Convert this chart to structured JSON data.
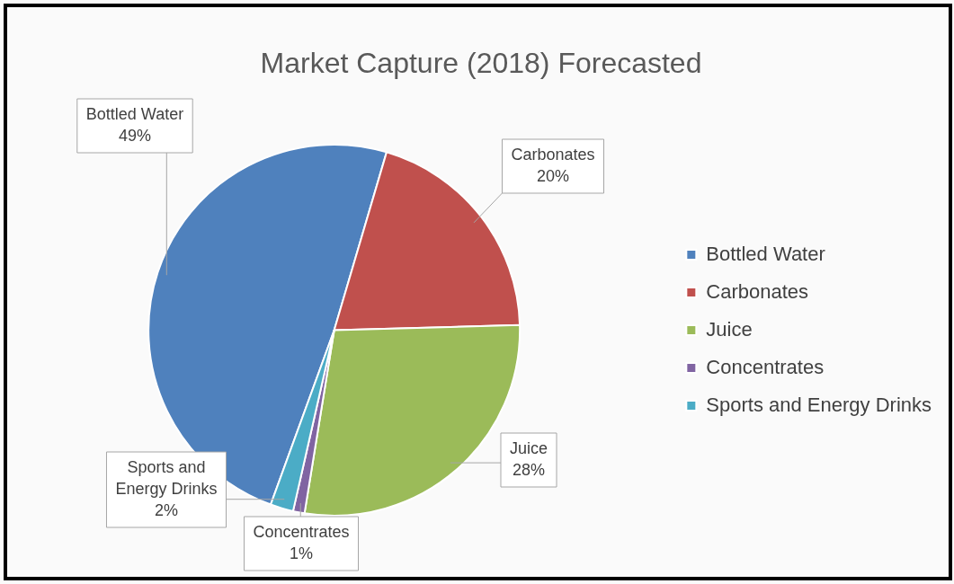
{
  "chart_data": {
    "type": "pie",
    "title": "Market Capture (2018) Forecasted",
    "categories": [
      "Bottled Water",
      "Carbonates",
      "Juice",
      "Concentrates",
      "Sports and Energy Drinks"
    ],
    "values": [
      49,
      20,
      28,
      1,
      2
    ],
    "value_labels": [
      "49%",
      "20%",
      "28%",
      "1%",
      "2%"
    ],
    "colors": [
      "#4f81bd",
      "#c0504d",
      "#9bbb59",
      "#8064a2",
      "#4bacc6"
    ],
    "legend": "right"
  }
}
